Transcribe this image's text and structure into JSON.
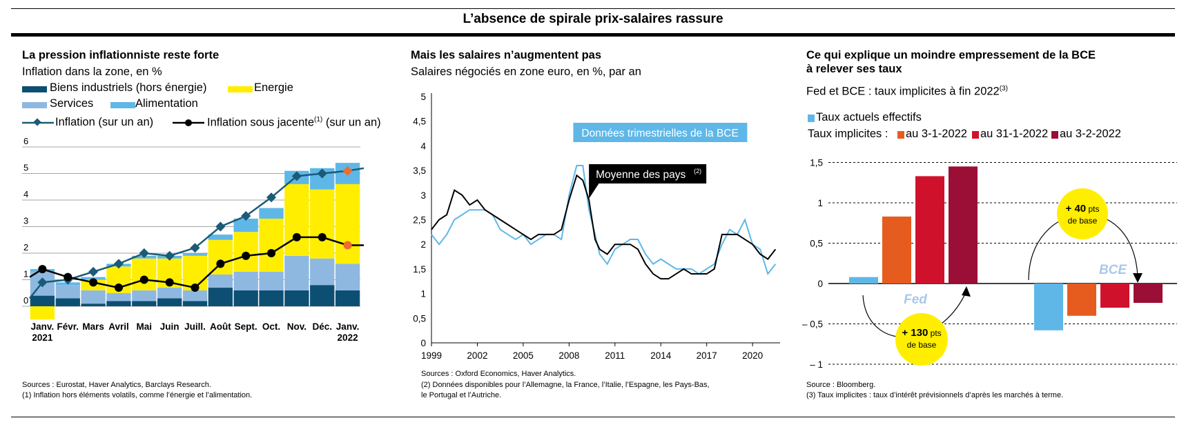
{
  "header": {
    "title": "L’absence de spirale prix-salaires rassure"
  },
  "panel1": {
    "title": "La pression inflationniste reste forte",
    "subtitle": "Inflation dans la zone, en %",
    "legend": {
      "biens": "Biens industriels (hors énergie)",
      "energie": "Energie",
      "services": "Services",
      "alimentation": "Alimentation",
      "inflation": "Inflation (sur un an)",
      "sous_jacente": "Inflation sous jacente",
      "sous_jacente_note": "(1)",
      "sous_jacente_suffix": "(sur un an)"
    },
    "sources": "Sources : Eurostat, Haver Analytics, Barclays Research.",
    "note": "(1) Inflation hors éléments volatils, comme l’énergie et l’alimentation.",
    "year_start": "2021",
    "year_end": "2022"
  },
  "panel2": {
    "title": "Mais les salaires n’augmentent pas",
    "subtitle": "Salaires négociés en zone euro, en %, par an",
    "label_bce": "Données trimestrielles de la BCE",
    "label_moyenne": "Moyenne des pays",
    "label_moyenne_note": "(2)",
    "sources": "Sources : Oxford Economics, Haver Analytics.",
    "note1": "(2) Données disponibles pour l’Allemagne, la France, l’Italie, l’Espagne, les Pays-Bas,",
    "note2": "le Portugal et l’Autriche."
  },
  "panel3": {
    "title_line1": "Ce qui explique un moindre empressement de la BCE",
    "title_line2": "à relever ses taux",
    "subtitle": "Fed et BCE : taux implicites à fin 2022",
    "subtitle_note": "(3)",
    "legend_actuels": "Taux actuels effectifs",
    "legend_prefix": "Taux implicites :",
    "legend_d1": "au 3-1-2022",
    "legend_d2": "au 31-1-2022",
    "legend_d3": "au 3-2-2022",
    "label_fed": "Fed",
    "label_bce": "BCE",
    "fed_change_1": "+ 130",
    "fed_change_2": " pts",
    "fed_change_3": "de base",
    "bce_change_1": "+ 40",
    "bce_change_2": " pts",
    "bce_change_3": "de base",
    "sources": "Source : Bloomberg.",
    "note": "(3) Taux implicites : taux d’intérêt prévisionnels d’après les marchés à terme."
  },
  "colors": {
    "biens": "#0d4f73",
    "energie": "#ffee00",
    "services": "#8fb8e1",
    "alimentation": "#5fb7e8",
    "inflation_line": "#1a5b78",
    "highlight": "#ed6c2f",
    "moyenne": "#000000",
    "bce_line": "#5fb7e8",
    "d1": "#e65c1e",
    "d2": "#d0112b",
    "d3": "#9b0e36",
    "bubble": "#ffee00"
  },
  "chart_data": [
    {
      "type": "bar",
      "stacked": true,
      "categories": [
        "Janv.",
        "Févr.",
        "Mars",
        "Avril",
        "Mai",
        "Juin",
        "Juill.",
        "Août",
        "Sept.",
        "Oct.",
        "Nov.",
        "Déc.",
        "Janv."
      ],
      "ylim": [
        0,
        6
      ],
      "yticks": [
        "0",
        "1",
        "2",
        "3",
        "4",
        "5",
        "6"
      ],
      "series": [
        {
          "name": "Biens industriels (hors énergie)",
          "values": [
            0.4,
            0.3,
            0.1,
            0.2,
            0.2,
            0.3,
            0.2,
            0.7,
            0.6,
            0.6,
            0.6,
            0.8,
            0.6
          ]
        },
        {
          "name": "Services",
          "values": [
            0.9,
            0.5,
            0.5,
            0.3,
            0.4,
            0.4,
            0.4,
            0.5,
            0.7,
            0.7,
            1.3,
            1.0,
            1.0
          ]
        },
        {
          "name": "Energie",
          "values": [
            -0.5,
            0.0,
            0.4,
            1.0,
            1.2,
            1.1,
            1.3,
            1.3,
            1.5,
            2.0,
            2.7,
            2.6,
            3.0
          ]
        },
        {
          "name": "Alimentation",
          "values": [
            0.1,
            0.1,
            0.1,
            0.1,
            0.1,
            0.1,
            0.1,
            0.2,
            0.5,
            0.4,
            0.5,
            0.8,
            0.8
          ]
        },
        {
          "name": "Inflation (sur un an)",
          "type": "line",
          "values": [
            0.9,
            1.0,
            1.3,
            1.6,
            2.0,
            1.9,
            2.2,
            3.0,
            3.4,
            4.1,
            4.9,
            5.0,
            5.1
          ]
        },
        {
          "name": "Inflation sous jacente (sur un an)",
          "type": "line",
          "values": [
            1.4,
            1.1,
            0.9,
            0.7,
            1.0,
            0.9,
            0.7,
            1.6,
            1.9,
            2.0,
            2.6,
            2.6,
            2.3
          ]
        }
      ]
    },
    {
      "type": "line",
      "ylim": [
        0,
        5
      ],
      "yticks": [
        "0",
        "0,5",
        "1",
        "1,5",
        "2",
        "2,5",
        "3",
        "3,5",
        "4",
        "4,5",
        "5"
      ],
      "xlim": [
        1999,
        2021.8
      ],
      "xticks": [
        "1999",
        "2002",
        "2005",
        "2008",
        "2011",
        "2014",
        "2017",
        "2020"
      ],
      "series": [
        {
          "name": "Données trimestrielles de la BCE",
          "x": [
            1999,
            1999.5,
            2000,
            2000.5,
            2001,
            2001.5,
            2002,
            2002.5,
            2003,
            2003.5,
            2004,
            2004.5,
            2005,
            2005.5,
            2006,
            2006.5,
            2007,
            2007.5,
            2008,
            2008.5,
            2008.9,
            2009.3,
            2009.7,
            2010,
            2010.5,
            2011,
            2011.5,
            2012,
            2012.5,
            2013,
            2013.5,
            2014,
            2014.5,
            2015,
            2015.5,
            2016,
            2016.5,
            2017,
            2017.5,
            2018,
            2018.5,
            2019,
            2019.5,
            2020,
            2020.5,
            2021,
            2021.5
          ],
          "y": [
            2.2,
            2.0,
            2.2,
            2.5,
            2.6,
            2.7,
            2.7,
            2.7,
            2.6,
            2.3,
            2.2,
            2.1,
            2.2,
            2.0,
            2.1,
            2.2,
            2.2,
            2.1,
            3.0,
            3.6,
            3.6,
            2.7,
            2.2,
            1.8,
            1.6,
            1.9,
            2.0,
            2.1,
            2.1,
            1.8,
            1.6,
            1.7,
            1.6,
            1.5,
            1.5,
            1.5,
            1.4,
            1.5,
            1.6,
            2.0,
            2.3,
            2.2,
            2.5,
            2.0,
            1.9,
            1.4,
            1.6
          ]
        },
        {
          "name": "Moyenne des pays",
          "x": [
            1999,
            1999.5,
            2000,
            2000.5,
            2001,
            2001.5,
            2002,
            2002.5,
            2003,
            2003.5,
            2004,
            2004.5,
            2005,
            2005.5,
            2006,
            2006.5,
            2007,
            2007.5,
            2008,
            2008.5,
            2008.9,
            2009.3,
            2009.7,
            2010,
            2010.5,
            2011,
            2011.5,
            2012,
            2012.5,
            2013,
            2013.5,
            2014,
            2014.5,
            2015,
            2015.5,
            2016,
            2016.5,
            2017,
            2017.5,
            2018,
            2018.5,
            2019,
            2019.5,
            2020,
            2020.5,
            2021,
            2021.5
          ],
          "y": [
            2.3,
            2.5,
            2.6,
            3.1,
            3.0,
            2.8,
            2.9,
            2.7,
            2.6,
            2.5,
            2.4,
            2.3,
            2.2,
            2.1,
            2.2,
            2.2,
            2.2,
            2.3,
            2.9,
            3.4,
            3.3,
            2.9,
            2.1,
            1.9,
            1.8,
            2.0,
            2.0,
            2.0,
            1.9,
            1.6,
            1.4,
            1.3,
            1.3,
            1.4,
            1.5,
            1.4,
            1.4,
            1.4,
            1.5,
            2.2,
            2.2,
            2.2,
            2.1,
            2.0,
            1.8,
            1.7,
            1.9
          ]
        }
      ]
    },
    {
      "type": "bar",
      "ylim": [
        -1,
        1.5
      ],
      "yticks": [
        "1,5",
        "1",
        "0,5",
        "0",
        "– 0,5",
        "– 1"
      ],
      "categories": [
        "Fed",
        "BCE"
      ],
      "series": [
        {
          "name": "Taux actuels effectifs",
          "values": [
            0.08,
            -0.58
          ]
        },
        {
          "name": "au 3-1-2022",
          "values": [
            0.83,
            -0.4
          ]
        },
        {
          "name": "au 31-1-2022",
          "values": [
            1.33,
            -0.3
          ]
        },
        {
          "name": "au 3-2-2022",
          "values": [
            1.45,
            -0.24
          ]
        }
      ]
    }
  ]
}
